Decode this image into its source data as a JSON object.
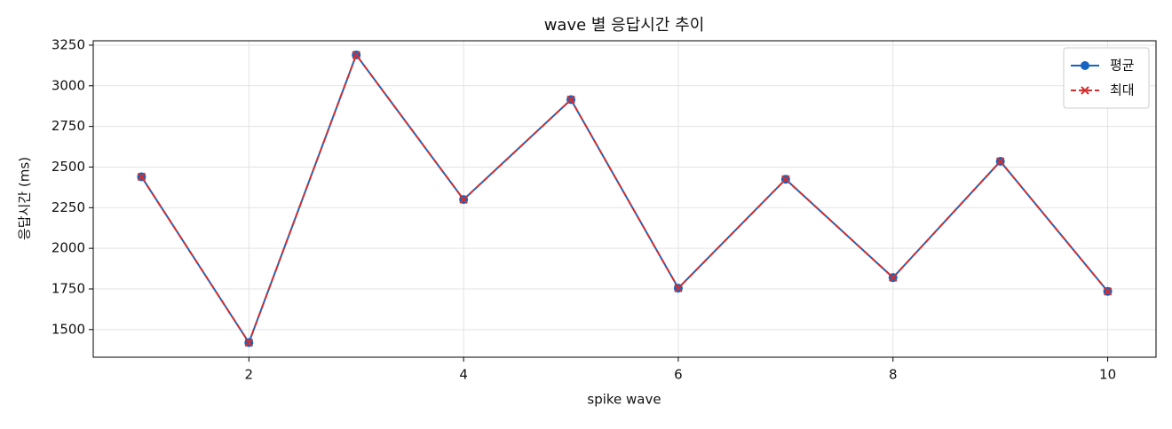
{
  "chart_data": {
    "type": "line",
    "title": "wave 별 응답시간 추이",
    "xlabel": "spike wave",
    "ylabel": "응답시간 (ms)",
    "x": [
      1,
      2,
      3,
      4,
      5,
      6,
      7,
      8,
      9,
      10
    ],
    "series": [
      {
        "name": "평균",
        "color": "#1565c0",
        "linestyle": "solid",
        "marker": "circle",
        "values": [
          2440,
          1420,
          3190,
          2300,
          2915,
          1755,
          2425,
          1820,
          2535,
          1735
        ]
      },
      {
        "name": "최대",
        "color": "#d32f2f",
        "linestyle": "dashed",
        "marker": "x",
        "values": [
          2440,
          1420,
          3190,
          2300,
          2915,
          1755,
          2425,
          1820,
          2535,
          1735
        ]
      }
    ],
    "xlim": [
      0.55,
      10.45
    ],
    "xticks": [
      2,
      4,
      6,
      8,
      10
    ],
    "ylim": [
      1330,
      3277
    ],
    "yticks": [
      1500,
      1750,
      2000,
      2250,
      2500,
      2750,
      3000,
      3250
    ],
    "grid": true,
    "legend": "upper right"
  }
}
